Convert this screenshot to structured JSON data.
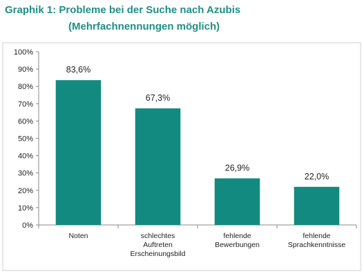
{
  "header": {
    "title": "Graphik 1: Probleme bei der Suche nach Azubis",
    "subtitle": "(Mehrfachnennungen möglich)"
  },
  "colors": {
    "title": "#1f8f86",
    "bar": "#138a80",
    "axis": "#888888",
    "plot_border": "#cfcfcf"
  },
  "chart_data": {
    "type": "bar",
    "title": "Graphik 1: Probleme bei der Suche nach Azubis",
    "subtitle": "(Mehrfachnennungen möglich)",
    "categories": [
      [
        "Noten"
      ],
      [
        "schlechtes",
        "Auftreten",
        "Erscheinungsbild"
      ],
      [
        "fehlende",
        "Bewerbungen"
      ],
      [
        "fehlende",
        "Sprachkenntnisse"
      ]
    ],
    "values": [
      83.6,
      67.3,
      26.9,
      22.0
    ],
    "value_labels": [
      "83,6%",
      "67,3%",
      "26,9%",
      "22,0%"
    ],
    "ylim": [
      0,
      100
    ],
    "yticks": [
      0,
      10,
      20,
      30,
      40,
      50,
      60,
      70,
      80,
      90,
      100
    ],
    "ytick_labels": [
      "0%",
      "10%",
      "20%",
      "30%",
      "40%",
      "50%",
      "60%",
      "70%",
      "80%",
      "90%",
      "100%"
    ],
    "grid": false,
    "legend": "none"
  }
}
